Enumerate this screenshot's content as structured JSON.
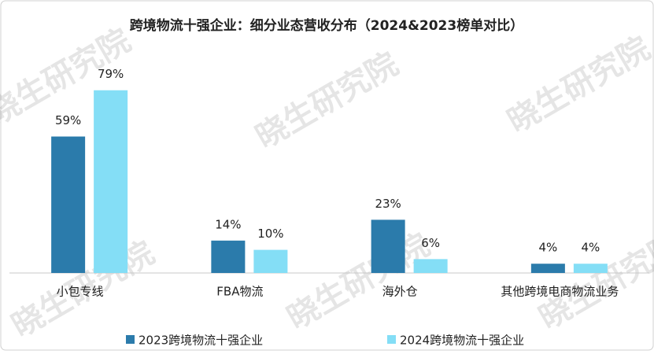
{
  "chart_data": {
    "type": "bar",
    "title": "跨境物流十强企业：细分业态营收分布（2024&2023榜单对比）",
    "watermark": "晓生研究院",
    "categories": [
      "小包专线",
      "FBA物流",
      "海外仓",
      "其他跨境电商物流业务"
    ],
    "series": [
      {
        "name": "2023跨境物流十强企业",
        "color": "#2b7bab",
        "values": [
          59,
          14,
          23,
          4
        ],
        "value_labels": [
          "59%",
          "14%",
          "23%",
          "4%"
        ]
      },
      {
        "name": "2024跨境物流十强企业",
        "color": "#84def6",
        "values": [
          79,
          10,
          6,
          4
        ],
        "value_labels": [
          "79%",
          "10%",
          "6%",
          "4%"
        ]
      }
    ],
    "legend": "bottom"
  }
}
